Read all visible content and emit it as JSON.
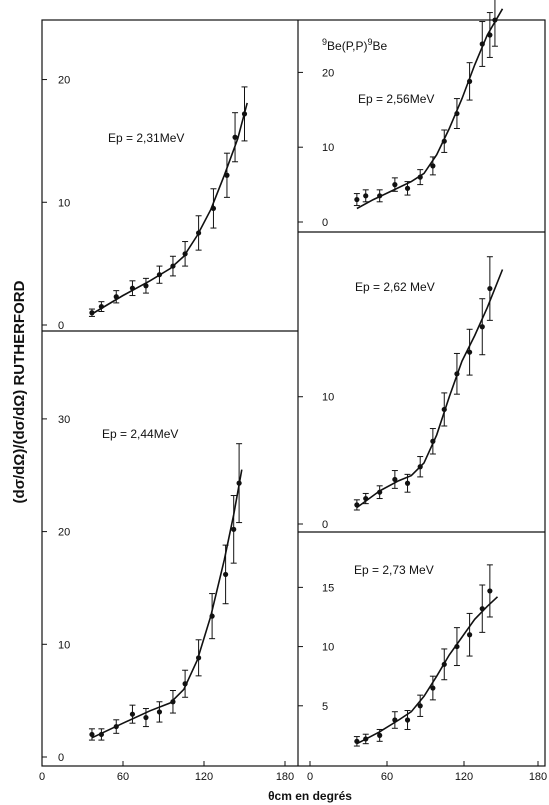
{
  "figure": {
    "title_parts": {
      "pre_sup": "9",
      "mid": "Be(P,P)",
      "post_sup": "9",
      "end": "Be"
    },
    "ylabel": "(dσ/dΩ)/(dσ/dΩ) RUTHERFORD",
    "xlabel": "θcm en degrés",
    "x_ticks_left": [
      "0",
      "60",
      "120",
      "180"
    ],
    "x_ticks_right": [
      "0",
      "60",
      "120",
      "180"
    ]
  },
  "chart_data": [
    {
      "type": "scatter",
      "label": "Ep = 2,31MeV",
      "xlim": [
        0,
        180
      ],
      "ylim": [
        0,
        22
      ],
      "y_ticks": [
        "0",
        "10",
        "20"
      ],
      "x": [
        37,
        44,
        55,
        67,
        77,
        87,
        97,
        106,
        116,
        127,
        137,
        143,
        150
      ],
      "values": [
        1.0,
        1.5,
        2.3,
        3.0,
        3.2,
        4.1,
        4.8,
        5.8,
        7.5,
        9.5,
        12.2,
        15.3,
        17.2
      ],
      "errors": [
        0.3,
        0.4,
        0.5,
        0.6,
        0.6,
        0.7,
        0.8,
        1.0,
        1.4,
        1.6,
        1.8,
        2.0,
        2.2
      ],
      "fit": [
        [
          37,
          0.9
        ],
        [
          60,
          2.4
        ],
        [
          80,
          3.6
        ],
        [
          95,
          4.6
        ],
        [
          105,
          5.6
        ],
        [
          115,
          7.3
        ],
        [
          125,
          9.4
        ],
        [
          135,
          12.2
        ],
        [
          145,
          15.2
        ],
        [
          152,
          18.1
        ]
      ]
    },
    {
      "type": "scatter",
      "label": "Ep = 2,44MeV",
      "xlim": [
        0,
        180
      ],
      "ylim": [
        0,
        37
      ],
      "y_ticks": [
        "0",
        "10",
        "20",
        "30"
      ],
      "x": [
        37,
        44,
        55,
        67,
        77,
        87,
        97,
        106,
        116,
        126,
        136,
        142,
        146
      ],
      "values": [
        2.0,
        2.0,
        2.7,
        3.8,
        3.5,
        4.0,
        4.9,
        6.5,
        8.8,
        12.5,
        16.2,
        20.2,
        24.3
      ],
      "errors": [
        0.5,
        0.5,
        0.6,
        0.8,
        0.8,
        0.9,
        1.0,
        1.2,
        1.6,
        2.0,
        2.6,
        3.0,
        3.5
      ],
      "fit": [
        [
          37,
          1.7
        ],
        [
          60,
          3.0
        ],
        [
          80,
          4.1
        ],
        [
          95,
          4.8
        ],
        [
          105,
          6.0
        ],
        [
          115,
          8.6
        ],
        [
          125,
          12.5
        ],
        [
          135,
          17.5
        ],
        [
          142,
          21.5
        ],
        [
          148,
          25.5
        ]
      ]
    },
    {
      "type": "scatter",
      "label": "Ep = 2,56MeV",
      "xlim": [
        0,
        180
      ],
      "ylim": [
        0,
        25
      ],
      "y_ticks": [
        "0",
        "10",
        "20"
      ],
      "x": [
        37,
        44,
        55,
        67,
        77,
        87,
        97,
        106,
        116,
        126,
        136,
        142,
        146
      ],
      "values": [
        3.0,
        3.5,
        3.5,
        5.0,
        4.5,
        6.0,
        7.5,
        10.8,
        14.5,
        18.8,
        23.8,
        25.0,
        27.0
      ],
      "errors": [
        0.8,
        0.8,
        0.8,
        0.9,
        0.9,
        1.0,
        1.2,
        1.5,
        2.0,
        2.5,
        3.0,
        3.0,
        3.5
      ],
      "fit": [
        [
          37,
          1.8
        ],
        [
          50,
          3.0
        ],
        [
          65,
          4.2
        ],
        [
          80,
          5.4
        ],
        [
          90,
          6.5
        ],
        [
          100,
          9.0
        ],
        [
          110,
          12.5
        ],
        [
          120,
          16.5
        ],
        [
          130,
          21.0
        ],
        [
          140,
          25.0
        ],
        [
          152,
          28.5
        ]
      ]
    },
    {
      "type": "scatter",
      "label": "Ep = 2,62 MeV",
      "xlim": [
        0,
        180
      ],
      "ylim": [
        0,
        22
      ],
      "y_ticks": [
        "0",
        "10"
      ],
      "x": [
        37,
        44,
        55,
        67,
        77,
        87,
        97,
        106,
        116,
        126,
        136,
        142
      ],
      "values": [
        1.5,
        2.0,
        2.5,
        3.5,
        3.2,
        4.5,
        6.5,
        9.0,
        11.8,
        13.5,
        15.5,
        18.5
      ],
      "errors": [
        0.4,
        0.4,
        0.5,
        0.7,
        0.7,
        0.8,
        1.0,
        1.3,
        1.6,
        1.8,
        2.2,
        2.5
      ],
      "fit": [
        [
          37,
          1.3
        ],
        [
          55,
          2.6
        ],
        [
          70,
          3.4
        ],
        [
          80,
          3.8
        ],
        [
          90,
          4.8
        ],
        [
          100,
          7.0
        ],
        [
          110,
          10.0
        ],
        [
          120,
          12.8
        ],
        [
          130,
          14.8
        ],
        [
          140,
          17.0
        ],
        [
          152,
          20.0
        ]
      ]
    },
    {
      "type": "scatter",
      "label": "Ep = 2,73 MeV",
      "xlim": [
        0,
        180
      ],
      "ylim": [
        0,
        19
      ],
      "y_ticks": [
        "5",
        "10",
        "15"
      ],
      "x": [
        37,
        44,
        55,
        67,
        77,
        87,
        97,
        106,
        116,
        126,
        136,
        142
      ],
      "values": [
        2.0,
        2.2,
        2.5,
        3.8,
        3.8,
        5.0,
        6.5,
        8.5,
        10.0,
        11.0,
        13.2,
        14.7
      ],
      "errors": [
        0.4,
        0.4,
        0.5,
        0.7,
        0.8,
        0.9,
        1.0,
        1.3,
        1.6,
        1.8,
        2.0,
        2.2
      ],
      "fit": [
        [
          37,
          1.8
        ],
        [
          55,
          2.8
        ],
        [
          70,
          3.8
        ],
        [
          80,
          4.5
        ],
        [
          90,
          5.8
        ],
        [
          100,
          7.5
        ],
        [
          110,
          9.3
        ],
        [
          120,
          10.8
        ],
        [
          130,
          12.3
        ],
        [
          140,
          13.4
        ],
        [
          148,
          14.2
        ]
      ]
    }
  ]
}
